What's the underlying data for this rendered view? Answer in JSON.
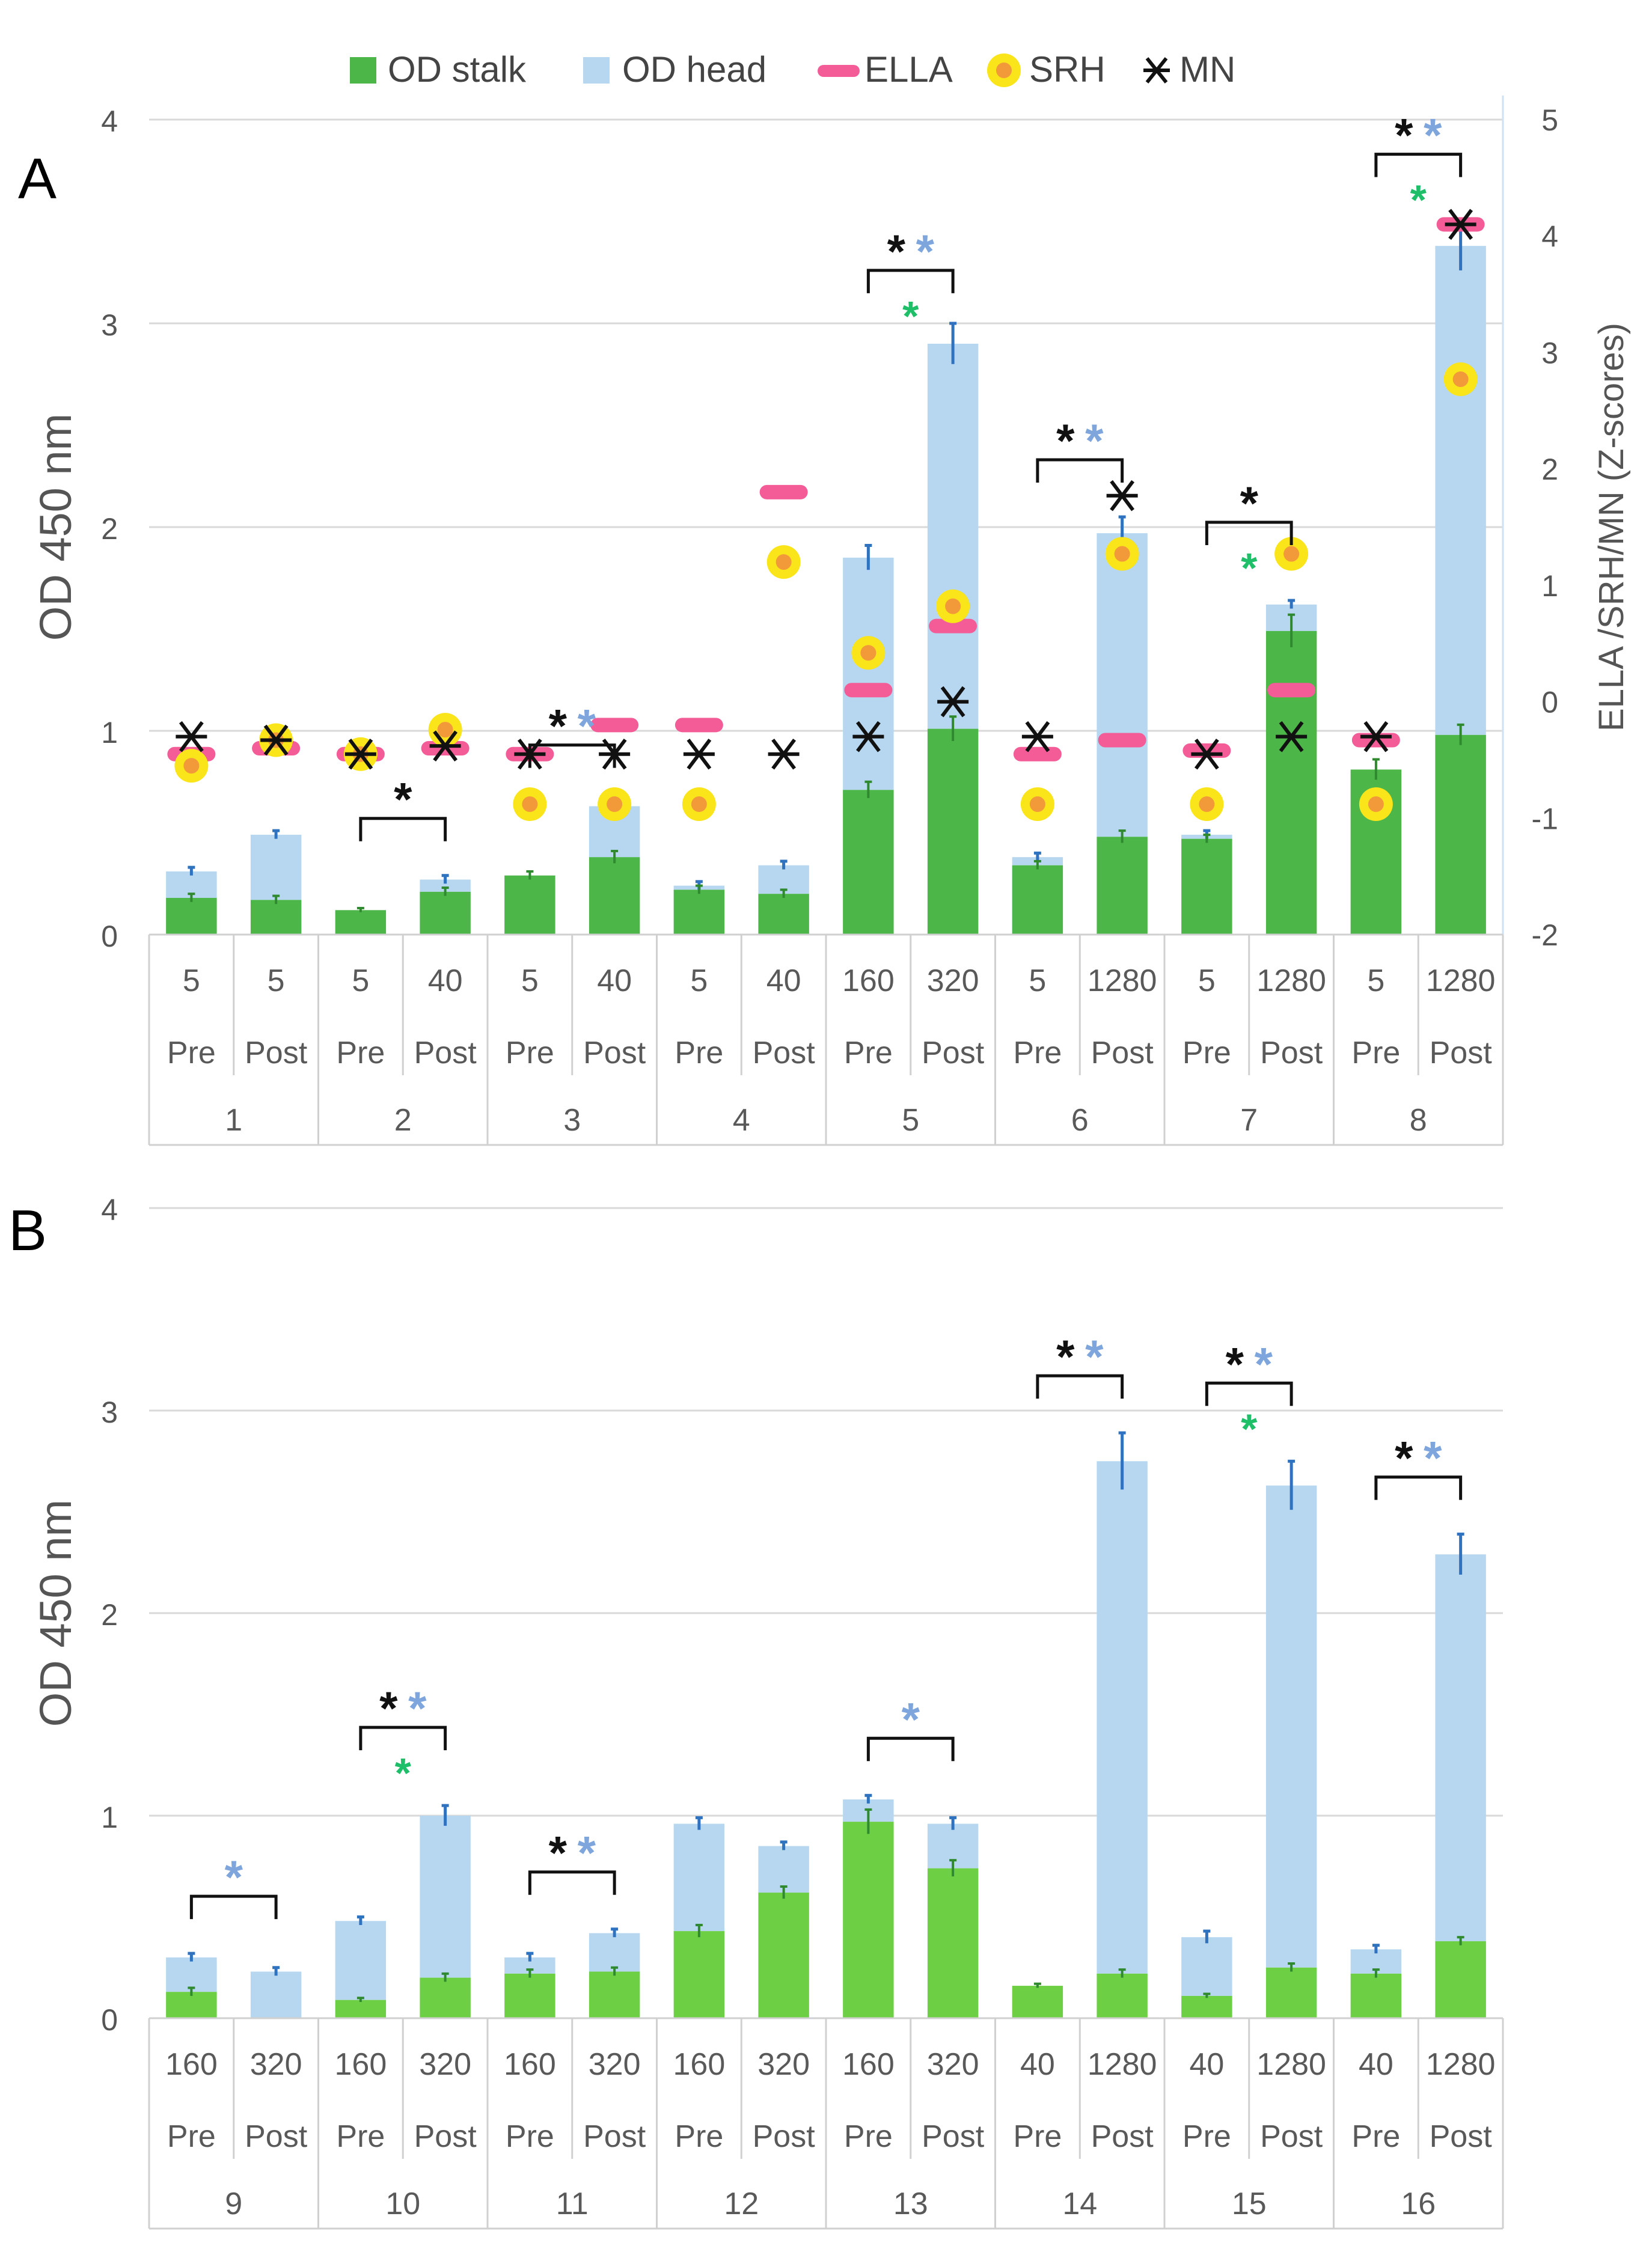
{
  "colors": {
    "stalk": "#4cb648",
    "stalk_b": "#6ccf44",
    "head": "#b6d7ef",
    "ella": "#f35c97",
    "srh_outer": "#f9e51a",
    "srh_inner": "#f29a3a",
    "mn": "#111111",
    "err_head": "#2e72c0",
    "err_stalk": "#2f8a2f",
    "star_black": "#111111",
    "star_blue": "#7ea6dd",
    "star_green": "#1fbf6a",
    "grid": "#d9d9d9",
    "axis_text": "#555555",
    "tick_text": "#595959"
  },
  "legend": {
    "stalk": "OD stalk",
    "head": "OD head",
    "ella": "ELLA",
    "srh": "SRH",
    "mn": "MN"
  },
  "chart_data": [
    {
      "panel": "A",
      "type": "bar",
      "stacked": true,
      "ylabel": "OD 450 nm",
      "y2label": "ELLA /SRH/MN (Z-scores)",
      "ylim": [
        0,
        4
      ],
      "yticks": [
        "0",
        "1",
        "2",
        "3",
        "4"
      ],
      "y2lim": [
        -2,
        5
      ],
      "y2ticks": [
        "-2",
        "-1",
        "0",
        "1",
        "2",
        "3",
        "4",
        "5"
      ],
      "titers": [
        "5",
        "5",
        "5",
        "40",
        "5",
        "40",
        "5",
        "40",
        "160",
        "320",
        "5",
        "1280",
        "5",
        "1280",
        "5",
        "1280"
      ],
      "timepoints": [
        "Pre",
        "Post",
        "Pre",
        "Post",
        "Pre",
        "Post",
        "Pre",
        "Post",
        "Pre",
        "Post",
        "Pre",
        "Post",
        "Pre",
        "Post",
        "Pre",
        "Post"
      ],
      "subjects": [
        "1",
        "2",
        "3",
        "4",
        "5",
        "6",
        "7",
        "8"
      ],
      "stalk": [
        0.18,
        0.17,
        0.12,
        0.21,
        0.29,
        0.38,
        0.22,
        0.2,
        0.71,
        1.01,
        0.34,
        0.48,
        0.47,
        1.49,
        0.81,
        0.98
      ],
      "stalk_err": [
        0.02,
        0.02,
        0.01,
        0.02,
        0.02,
        0.03,
        0.02,
        0.02,
        0.04,
        0.06,
        0.02,
        0.03,
        0.02,
        0.08,
        0.05,
        0.05
      ],
      "total": [
        0.31,
        0.49,
        0.12,
        0.27,
        0.29,
        0.63,
        0.24,
        0.34,
        1.85,
        2.9,
        0.38,
        1.97,
        0.49,
        1.62,
        0.81,
        3.38
      ],
      "total_err": [
        0.02,
        0.02,
        0.0,
        0.02,
        0.02,
        0.02,
        0.02,
        0.02,
        0.06,
        0.1,
        0.02,
        0.08,
        0.02,
        0.02,
        0.0,
        0.12
      ],
      "ella_z": [
        -0.45,
        -0.4,
        -0.45,
        -0.4,
        -0.45,
        -0.2,
        -0.2,
        1.8,
        0.1,
        0.65,
        -0.45,
        -0.33,
        -0.42,
        0.1,
        -0.33,
        4.1
      ],
      "srh_z": [
        -0.55,
        -0.33,
        -0.45,
        -0.24,
        -0.88,
        -0.88,
        -0.88,
        1.2,
        0.42,
        0.82,
        -0.88,
        1.27,
        -0.88,
        1.27,
        -0.88,
        2.77
      ],
      "mn_z": [
        -0.3,
        -0.33,
        -0.45,
        -0.38,
        -0.45,
        -0.45,
        -0.45,
        -0.45,
        -0.3,
        0.0,
        -0.3,
        1.77,
        -0.45,
        -0.3,
        -0.3,
        4.1
      ],
      "significance": [
        {
          "pair": 2,
          "stars": [
            "black"
          ],
          "green": false
        },
        {
          "pair": 3,
          "stars": [
            "black",
            "blue"
          ],
          "green": false
        },
        {
          "pair": 5,
          "stars": [
            "black",
            "blue"
          ],
          "green": true
        },
        {
          "pair": 6,
          "stars": [
            "black",
            "blue"
          ],
          "green": false
        },
        {
          "pair": 7,
          "stars": [
            "black"
          ],
          "green": true
        },
        {
          "pair": 8,
          "stars": [
            "black",
            "blue"
          ],
          "green": true
        }
      ]
    },
    {
      "panel": "B",
      "type": "bar",
      "stacked": true,
      "ylabel": "OD 450 nm",
      "ylim": [
        0,
        4
      ],
      "yticks": [
        "0",
        "1",
        "2",
        "3",
        "4"
      ],
      "titers": [
        "160",
        "320",
        "160",
        "320",
        "160",
        "320",
        "160",
        "320",
        "160",
        "320",
        "40",
        "1280",
        "40",
        "1280",
        "40",
        "1280"
      ],
      "timepoints": [
        "Pre",
        "Post",
        "Pre",
        "Post",
        "Pre",
        "Post",
        "Pre",
        "Post",
        "Pre",
        "Post",
        "Pre",
        "Post",
        "Pre",
        "Post",
        "Pre",
        "Post"
      ],
      "subjects": [
        "9",
        "10",
        "11",
        "12",
        "13",
        "14",
        "15",
        "16"
      ],
      "stalk": [
        0.13,
        0.0,
        0.09,
        0.2,
        0.22,
        0.23,
        0.43,
        0.62,
        0.97,
        0.74,
        0.16,
        0.22,
        0.11,
        0.25,
        0.22,
        0.38
      ],
      "stalk_err": [
        0.02,
        0.0,
        0.01,
        0.02,
        0.02,
        0.02,
        0.03,
        0.03,
        0.06,
        0.04,
        0.01,
        0.02,
        0.01,
        0.02,
        0.02,
        0.02
      ],
      "total": [
        0.3,
        0.23,
        0.48,
        1.0,
        0.3,
        0.42,
        0.96,
        0.85,
        1.08,
        0.96,
        0.16,
        2.75,
        0.4,
        2.63,
        0.34,
        2.29
      ],
      "total_err": [
        0.02,
        0.02,
        0.02,
        0.05,
        0.02,
        0.02,
        0.03,
        0.02,
        0.02,
        0.03,
        0.0,
        0.14,
        0.03,
        0.12,
        0.02,
        0.1
      ],
      "significance": [
        {
          "pair": 9,
          "stars": [
            "blue"
          ],
          "green": false
        },
        {
          "pair": 10,
          "stars": [
            "black",
            "blue"
          ],
          "green": true
        },
        {
          "pair": 11,
          "stars": [
            "black",
            "blue"
          ],
          "green": false
        },
        {
          "pair": 13,
          "stars": [
            "blue"
          ],
          "green": false
        },
        {
          "pair": 14,
          "stars": [
            "black",
            "blue"
          ],
          "green": false
        },
        {
          "pair": 15,
          "stars": [
            "black",
            "blue"
          ],
          "green": true
        },
        {
          "pair": 16,
          "stars": [
            "black",
            "blue"
          ],
          "green": false
        }
      ]
    }
  ],
  "panel_labels": {
    "a": "A",
    "b": "B"
  }
}
